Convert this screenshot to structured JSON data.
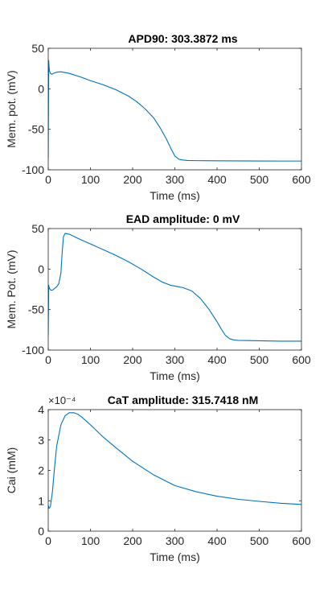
{
  "chart_data": [
    {
      "type": "line",
      "title": "APD90: 303.3872 ms",
      "xlabel": "Time (ms)",
      "ylabel": "Mem. pot. (mV)",
      "xlim": [
        0,
        600
      ],
      "ylim": [
        -100,
        50
      ],
      "xticks": [
        0,
        100,
        200,
        300,
        400,
        500,
        600
      ],
      "yticks": [
        -100,
        -50,
        0,
        50
      ],
      "exponent_label": "",
      "grid": false,
      "series": [
        {
          "color": "#0072BD",
          "x": [
            0,
            1,
            2,
            3,
            5,
            8,
            12,
            20,
            30,
            50,
            80,
            100,
            130,
            160,
            190,
            210,
            230,
            250,
            265,
            280,
            290,
            300,
            310,
            320,
            330,
            350,
            400,
            450,
            500,
            550,
            600
          ],
          "y": [
            -85,
            35,
            27,
            22,
            19,
            18,
            19,
            20.5,
            21,
            19,
            14,
            10,
            5,
            -1,
            -9,
            -16,
            -25,
            -36,
            -48,
            -62,
            -73,
            -83,
            -87,
            -88,
            -88.5,
            -88.7,
            -88.9,
            -89,
            -89.1,
            -89.2,
            -89.2
          ]
        }
      ]
    },
    {
      "type": "line",
      "title": "EAD amplitude: 0 mV",
      "xlabel": "Time (ms)",
      "ylabel": "Mem. Pot. (mV)",
      "xlim": [
        0,
        600
      ],
      "ylim": [
        -100,
        50
      ],
      "xticks": [
        0,
        100,
        200,
        300,
        400,
        500,
        600
      ],
      "yticks": [
        -100,
        -50,
        0,
        50
      ],
      "exponent_label": "",
      "grid": false,
      "series": [
        {
          "color": "#0072BD",
          "x": [
            0,
            1,
            3,
            6,
            10,
            15,
            20,
            25,
            30,
            33,
            36,
            40,
            50,
            70,
            100,
            130,
            160,
            190,
            220,
            250,
            270,
            290,
            300,
            320,
            340,
            360,
            380,
            400,
            410,
            420,
            430,
            440,
            450,
            500,
            550,
            600
          ],
          "y": [
            -82,
            -20,
            -24,
            -26,
            -26,
            -24,
            -22,
            -18,
            -5,
            20,
            40,
            44,
            43,
            38,
            31,
            24,
            17,
            9,
            0,
            -10,
            -16,
            -20,
            -21,
            -23,
            -27,
            -36,
            -49,
            -65,
            -74,
            -82,
            -86,
            -87.5,
            -88,
            -88.5,
            -89,
            -89
          ]
        }
      ]
    },
    {
      "type": "line",
      "title": "CaT amplitude: 315.7418 nM",
      "xlabel": "Time (ms)",
      "ylabel": "Cai (mM)",
      "xlim": [
        0,
        600
      ],
      "ylim": [
        0,
        4
      ],
      "xticks": [
        0,
        100,
        200,
        300,
        400,
        500,
        600
      ],
      "yticks": [
        0,
        1,
        2,
        3,
        4
      ],
      "exponent_label": "×10⁻⁴",
      "grid": false,
      "series": [
        {
          "color": "#0072BD",
          "x": [
            0,
            2,
            5,
            10,
            15,
            20,
            30,
            40,
            50,
            60,
            70,
            80,
            100,
            130,
            160,
            200,
            250,
            300,
            350,
            400,
            450,
            500,
            550,
            600
          ],
          "y": [
            0.85,
            0.75,
            0.8,
            1.3,
            2.1,
            2.8,
            3.5,
            3.8,
            3.9,
            3.9,
            3.85,
            3.75,
            3.5,
            3.1,
            2.75,
            2.3,
            1.85,
            1.5,
            1.3,
            1.15,
            1.05,
            0.98,
            0.92,
            0.88
          ]
        }
      ]
    }
  ]
}
